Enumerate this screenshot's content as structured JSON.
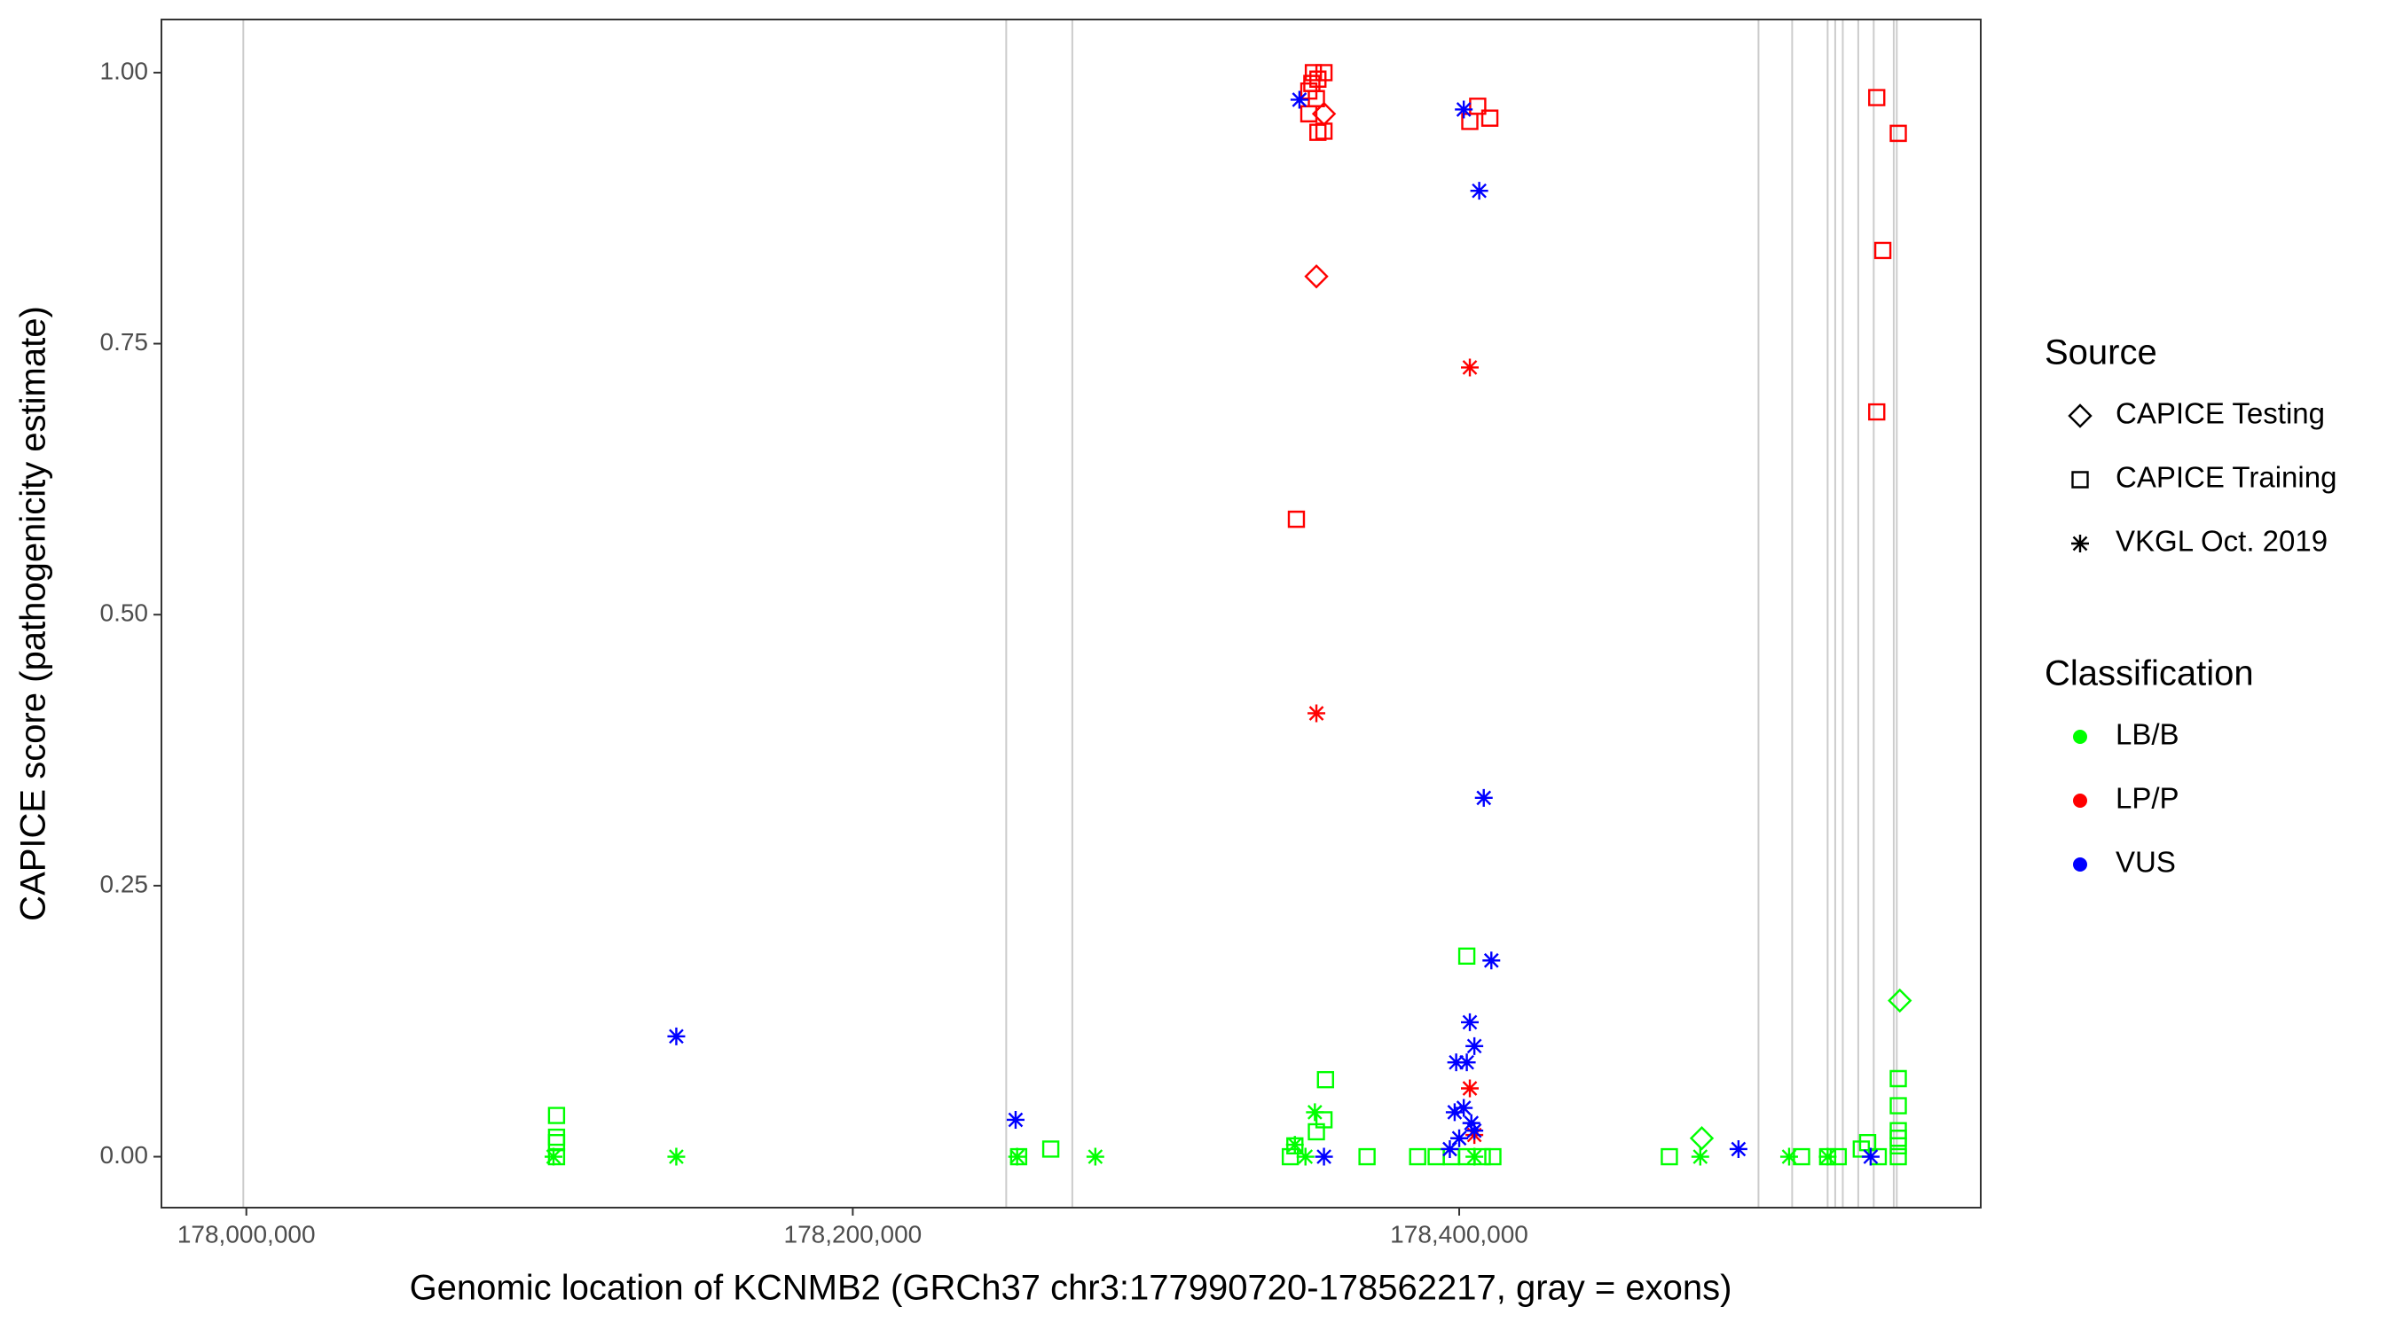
{
  "chart_data": {
    "type": "scatter",
    "x_label": "Genomic location of KCNMB2 (GRCh37 chr3:177990720-178562217, gray = exons)",
    "y_label": "CAPICE score (pathogenicity estimate)",
    "xlim": [
      177972000,
      178572000
    ],
    "ylim": [
      -0.047,
      1.049
    ],
    "xticks": [
      {
        "value": 178000000,
        "label": "178,000,000"
      },
      {
        "value": 178200000,
        "label": "178,200,000"
      },
      {
        "value": 178400000,
        "label": "178,400,000"
      }
    ],
    "yticks": [
      {
        "value": 0,
        "label": "0.00"
      },
      {
        "value": 0.25,
        "label": "0.25"
      },
      {
        "value": 0.5,
        "label": "0.50"
      },
      {
        "value": 0.75,
        "label": "0.75"
      },
      {
        "value": 1,
        "label": "1.00"
      }
    ],
    "grid": false,
    "exons": [
      177999000,
      178250600,
      178272400,
      178498700,
      178509800,
      178521500,
      178524000,
      178526500,
      178531600,
      178536700,
      178543300,
      178544300
    ],
    "exon_color": "#cccccc",
    "legend_position": "right",
    "shape_legend": {
      "title": "Source",
      "items": [
        {
          "name": "CAPICE Testing",
          "shape": "diamond"
        },
        {
          "name": "CAPICE Training",
          "shape": "square"
        },
        {
          "name": "VKGL Oct. 2019",
          "shape": "asterisk"
        }
      ]
    },
    "color_legend": {
      "title": "Classification",
      "items": [
        {
          "name": "LB/B",
          "color": "#00ff00"
        },
        {
          "name": "LP/P",
          "color": "#ff0000"
        },
        {
          "name": "VUS",
          "color": "#0000ff"
        }
      ]
    },
    "series": [
      {
        "source": "CAPICE Training",
        "classification": "LB/B",
        "x": [
          178102300,
          178102300,
          178102300,
          178102300,
          178254700,
          178265300,
          178344300,
          178345800,
          178352900,
          178355400,
          178355900,
          178369600,
          178386300,
          178392400,
          178397400,
          178402500,
          178407600,
          178411100,
          178402500,
          178469300,
          178512900,
          178521500,
          178525000,
          178532600,
          178534700,
          178538200,
          178544800,
          178544800,
          178544800,
          178544800,
          178544800,
          178544800
        ],
        "values": [
          0,
          0.013,
          0.018,
          0.038,
          0,
          0.007,
          0,
          0.01,
          0.023,
          0.034,
          0.071,
          0,
          0,
          0,
          0,
          0,
          0,
          0,
          0.185,
          0,
          0,
          0,
          0,
          0.007,
          0.013,
          0,
          0.072,
          0.047,
          0.024,
          0.017,
          0.01,
          0
        ]
      },
      {
        "source": "CAPICE Testing",
        "classification": "LB/B",
        "x": [
          178480000,
          178545300
        ],
        "values": [
          0.017,
          0.144
        ]
      },
      {
        "source": "VKGL Oct. 2019",
        "classification": "LB/B",
        "x": [
          178101300,
          178141800,
          178254200,
          178280000,
          178345800,
          178352400,
          178349300,
          178405000,
          178479500,
          178508800,
          178521500
        ],
        "values": [
          0,
          0,
          0,
          0,
          0.011,
          0.041,
          0,
          0,
          0,
          0,
          0
        ]
      },
      {
        "source": "CAPICE Training",
        "classification": "LP/P",
        "x": [
          178351900,
          178353400,
          178355400,
          178351400,
          178350400,
          178352900,
          178350400,
          178353400,
          178355400,
          178346300,
          178403500,
          178406100,
          178410100,
          178537700,
          178544800,
          178539700,
          178537700
        ],
        "values": [
          1.0,
          0.994,
          1.0,
          0.99,
          0.983,
          0.976,
          0.962,
          0.945,
          0.946,
          0.588,
          0.955,
          0.969,
          0.958,
          0.977,
          0.944,
          0.836,
          0.687
        ]
      },
      {
        "source": "CAPICE Testing",
        "classification": "LP/P",
        "x": [
          178355400,
          178352900
        ],
        "values": [
          0.962,
          0.812
        ]
      },
      {
        "source": "VKGL Oct. 2019",
        "classification": "LP/P",
        "x": [
          178352900,
          178403500,
          178403500,
          178405000
        ],
        "values": [
          0.409,
          0.728,
          0.063,
          0.02
        ]
      },
      {
        "source": "VKGL Oct. 2019",
        "classification": "VUS",
        "x": [
          178141800,
          178253700,
          178347300,
          178355400,
          178401500,
          178406600,
          178408100,
          178410600,
          178403500,
          178405000,
          178402500,
          178399000,
          178401500,
          178398500,
          178404000,
          178405000,
          178400000,
          178396900,
          178492100,
          178535700
        ],
        "values": [
          0.111,
          0.034,
          0.975,
          0,
          0.966,
          0.891,
          0.331,
          0.181,
          0.124,
          0.102,
          0.087,
          0.087,
          0.045,
          0.041,
          0.031,
          0.024,
          0.017,
          0.007,
          0.007,
          0
        ]
      }
    ]
  }
}
